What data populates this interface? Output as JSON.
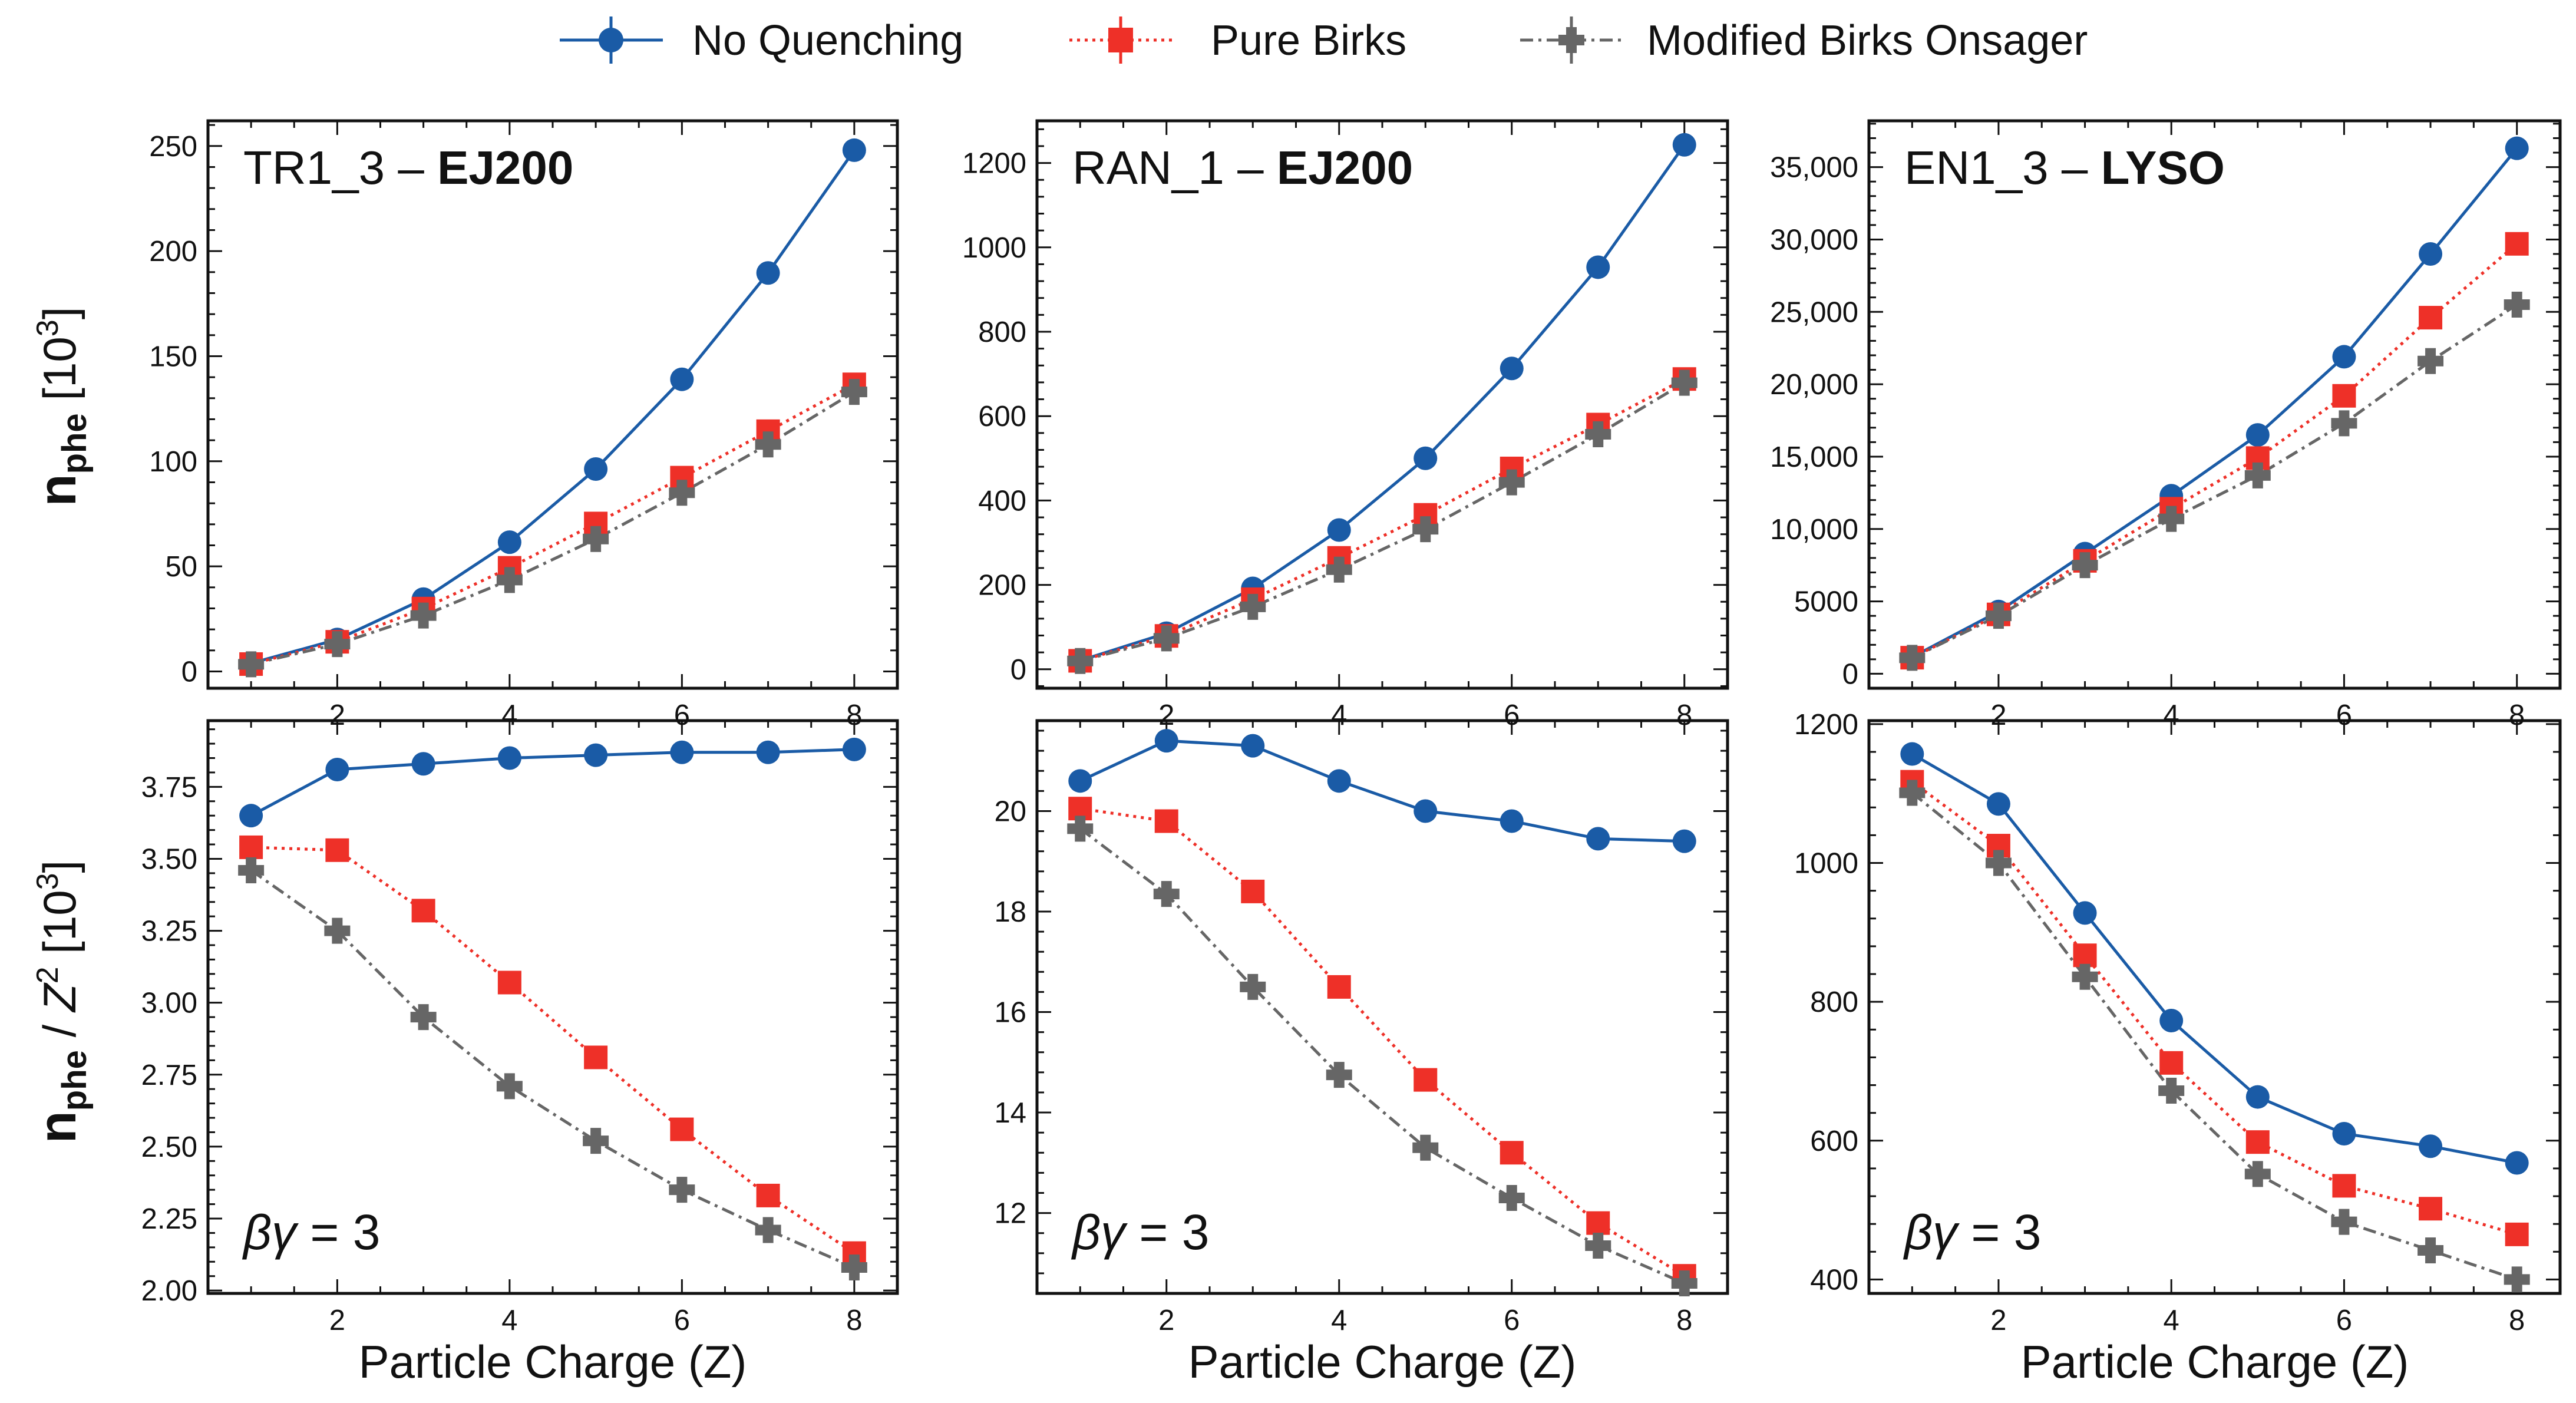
{
  "legend": {
    "items": [
      {
        "name": "No Quenching",
        "color": "#1a5ba6",
        "marker": "circle",
        "dash": "solid"
      },
      {
        "name": "Pure Birks",
        "color": "#ee3028",
        "marker": "square",
        "dash": "dotted"
      },
      {
        "name": "Modified Birks Onsager",
        "color": "#666666",
        "marker": "plus",
        "dash": "dashdot"
      }
    ]
  },
  "axis_labels": {
    "x": "Particle Charge (Z)",
    "y_top_main": "n",
    "y_top_sub": "phe",
    "y_top_unit": " [10",
    "y_top_exp": "3",
    "y_top_close": "]",
    "y_bottom_main": "n",
    "y_bottom_sub": "phe",
    "y_bottom_sep": " / ",
    "y_bottom_var": "Z",
    "y_bottom_exp1": "2",
    "y_bottom_unit": " [10",
    "y_bottom_exp2": "3",
    "y_bottom_close": "]"
  },
  "annotation": {
    "beta": "β",
    "gamma": "γ",
    "value": " = 3"
  },
  "chart_data": [
    {
      "type": "line",
      "panel": "top-left",
      "title_prefix": "TR1_3 – ",
      "title_bold": "EJ200",
      "x": [
        1,
        2,
        3,
        4,
        5,
        6,
        7,
        8
      ],
      "xlim": [
        0.5,
        8.5
      ],
      "xticks": [
        2,
        4,
        6,
        8
      ],
      "ylim": [
        -8,
        262
      ],
      "yticks": [
        0,
        50,
        100,
        150,
        200,
        250
      ],
      "ytick_labels": [
        "0",
        "50",
        "100",
        "150",
        "200",
        "250"
      ],
      "series": [
        {
          "name": "No Quenching",
          "values": [
            3.9,
            15.2,
            34.4,
            61.5,
            96.3,
            139.0,
            189.6,
            248.0
          ]
        },
        {
          "name": "Pure Birks",
          "values": [
            3.5,
            14.1,
            29.9,
            49.3,
            70.4,
            92.2,
            114.3,
            136.6
          ]
        },
        {
          "name": "Modified Birks Onsager",
          "values": [
            3.4,
            13.0,
            26.6,
            43.5,
            63.0,
            85.0,
            108.0,
            133.0
          ]
        }
      ]
    },
    {
      "type": "line",
      "panel": "top-middle",
      "title_prefix": "RAN_1 – ",
      "title_bold": "EJ200",
      "x": [
        1,
        2,
        3,
        4,
        5,
        6,
        7,
        8
      ],
      "xlim": [
        0.5,
        8.5
      ],
      "xticks": [
        2,
        4,
        6,
        8
      ],
      "ylim": [
        -45,
        1300
      ],
      "yticks": [
        0,
        200,
        400,
        600,
        800,
        1000,
        1200
      ],
      "ytick_labels": [
        "0",
        "200",
        "400",
        "600",
        "800",
        "1000",
        "1200"
      ],
      "series": [
        {
          "name": "No Quenching",
          "values": [
            20.6,
            85.5,
            191.7,
            330.0,
            500.0,
            713.0,
            953.0,
            1243.0
          ]
        },
        {
          "name": "Pure Birks",
          "values": [
            20.0,
            79.0,
            166.0,
            264.0,
            366.0,
            476.0,
            580.0,
            688.0
          ]
        },
        {
          "name": "Modified Birks Onsager",
          "values": [
            19.6,
            73.2,
            148.0,
            236.0,
            332.0,
            443.0,
            557.0,
            679.0
          ]
        }
      ]
    },
    {
      "type": "line",
      "panel": "top-right",
      "title_prefix": "EN1_3 – ",
      "title_bold": "LYSO",
      "x": [
        1,
        2,
        3,
        4,
        5,
        6,
        7,
        8
      ],
      "xlim": [
        0.5,
        8.5
      ],
      "xticks": [
        2,
        4,
        6,
        8
      ],
      "ylim": [
        -1000,
        38200
      ],
      "yticks": [
        0,
        5000,
        10000,
        15000,
        20000,
        25000,
        30000,
        35000
      ],
      "ytick_labels": [
        "0",
        "5000",
        "10,000",
        "15,000",
        "20,000",
        "25,000",
        "30,000",
        "35,000"
      ],
      "series": [
        {
          "name": "No Quenching",
          "values": [
            1150,
            4300,
            8300,
            12300,
            16500,
            21900,
            29000,
            36300
          ]
        },
        {
          "name": "Pure Birks",
          "values": [
            1110,
            4100,
            7800,
            11400,
            14900,
            19200,
            24600,
            29700
          ]
        },
        {
          "name": "Modified Birks Onsager",
          "values": [
            1100,
            4000,
            7500,
            10700,
            13700,
            17300,
            21600,
            25500
          ]
        }
      ]
    },
    {
      "type": "line",
      "panel": "bottom-left",
      "x": [
        1,
        2,
        3,
        4,
        5,
        6,
        7,
        8
      ],
      "xlim": [
        0.5,
        8.5
      ],
      "xticks": [
        2,
        4,
        6,
        8
      ],
      "ylim": [
        1.99,
        3.98
      ],
      "yticks": [
        2.0,
        2.25,
        2.5,
        2.75,
        3.0,
        3.25,
        3.5,
        3.75
      ],
      "ytick_labels": [
        "2.00",
        "2.25",
        "2.50",
        "2.75",
        "3.00",
        "3.25",
        "3.50",
        "3.75"
      ],
      "series": [
        {
          "name": "No Quenching",
          "values": [
            3.65,
            3.81,
            3.83,
            3.85,
            3.86,
            3.87,
            3.87,
            3.88
          ]
        },
        {
          "name": "Pure Birks",
          "values": [
            3.54,
            3.53,
            3.32,
            3.07,
            2.81,
            2.56,
            2.33,
            2.13
          ]
        },
        {
          "name": "Modified Birks Onsager",
          "values": [
            3.46,
            3.25,
            2.95,
            2.71,
            2.52,
            2.35,
            2.21,
            2.08
          ]
        }
      ]
    },
    {
      "type": "line",
      "panel": "bottom-middle",
      "x": [
        1,
        2,
        3,
        4,
        5,
        6,
        7,
        8
      ],
      "xlim": [
        0.5,
        8.5
      ],
      "xticks": [
        2,
        4,
        6,
        8
      ],
      "ylim": [
        10.4,
        21.8
      ],
      "yticks": [
        12,
        14,
        16,
        18,
        20
      ],
      "ytick_labels": [
        "12",
        "14",
        "16",
        "18",
        "20"
      ],
      "series": [
        {
          "name": "No Quenching",
          "values": [
            20.6,
            21.4,
            21.3,
            20.6,
            20.0,
            19.8,
            19.45,
            19.4
          ]
        },
        {
          "name": "Pure Birks",
          "values": [
            20.05,
            19.8,
            18.4,
            16.5,
            14.65,
            13.2,
            11.8,
            10.75
          ]
        },
        {
          "name": "Modified Birks Onsager",
          "values": [
            19.65,
            18.35,
            16.5,
            14.75,
            13.3,
            12.3,
            11.35,
            10.6
          ]
        }
      ]
    },
    {
      "type": "line",
      "panel": "bottom-right",
      "x": [
        1,
        2,
        3,
        4,
        5,
        6,
        7,
        8
      ],
      "xlim": [
        0.5,
        8.5
      ],
      "xticks": [
        2,
        4,
        6,
        8
      ],
      "ylim": [
        380,
        1205
      ],
      "yticks": [
        400,
        600,
        800,
        1000,
        1200
      ],
      "ytick_labels": [
        "400",
        "600",
        "800",
        "1000",
        "1200"
      ],
      "series": [
        {
          "name": "No Quenching",
          "values": [
            1157,
            1085,
            928,
            773,
            663,
            610,
            592,
            568
          ]
        },
        {
          "name": "Pure Birks",
          "values": [
            1117,
            1025,
            867,
            712,
            598,
            535,
            502,
            465
          ]
        },
        {
          "name": "Modified Birks Onsager",
          "values": [
            1101,
            1000,
            836,
            672,
            552,
            483,
            442,
            400
          ]
        }
      ]
    }
  ]
}
